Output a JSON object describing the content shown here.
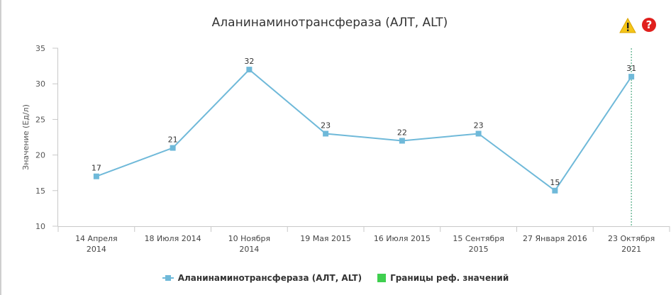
{
  "chart_data": {
    "type": "line",
    "title": "Аланинаминотрансфераза (АЛТ, ALT)",
    "ylabel": "Значение (Ед/л)",
    "ylim": [
      10,
      35
    ],
    "yticks": [
      10,
      15,
      20,
      25,
      30,
      35
    ],
    "grid": false,
    "legend_position": "bottom-center",
    "categories": [
      [
        "14 Апреля",
        "2014"
      ],
      [
        "18 Июля 2014"
      ],
      [
        "10 Ноября",
        "2014"
      ],
      [
        "19 Мая 2015"
      ],
      [
        "16 Июля 2015"
      ],
      [
        "15 Сентября",
        "2015"
      ],
      [
        "27 Января 2016"
      ],
      [
        "23 Октября",
        "2021"
      ]
    ],
    "series": [
      {
        "name": "Аланинаминотрансфераза (АЛТ, ALT)",
        "color": "#6fb9d9",
        "values": [
          17,
          21,
          32,
          23,
          22,
          23,
          15,
          31
        ]
      }
    ],
    "reference_legend": {
      "name": "Границы реф. значений",
      "color": "#3fcf4f"
    },
    "marker_line_index": 7
  },
  "icons": {
    "warning": "warning-icon",
    "help": "help-icon"
  }
}
